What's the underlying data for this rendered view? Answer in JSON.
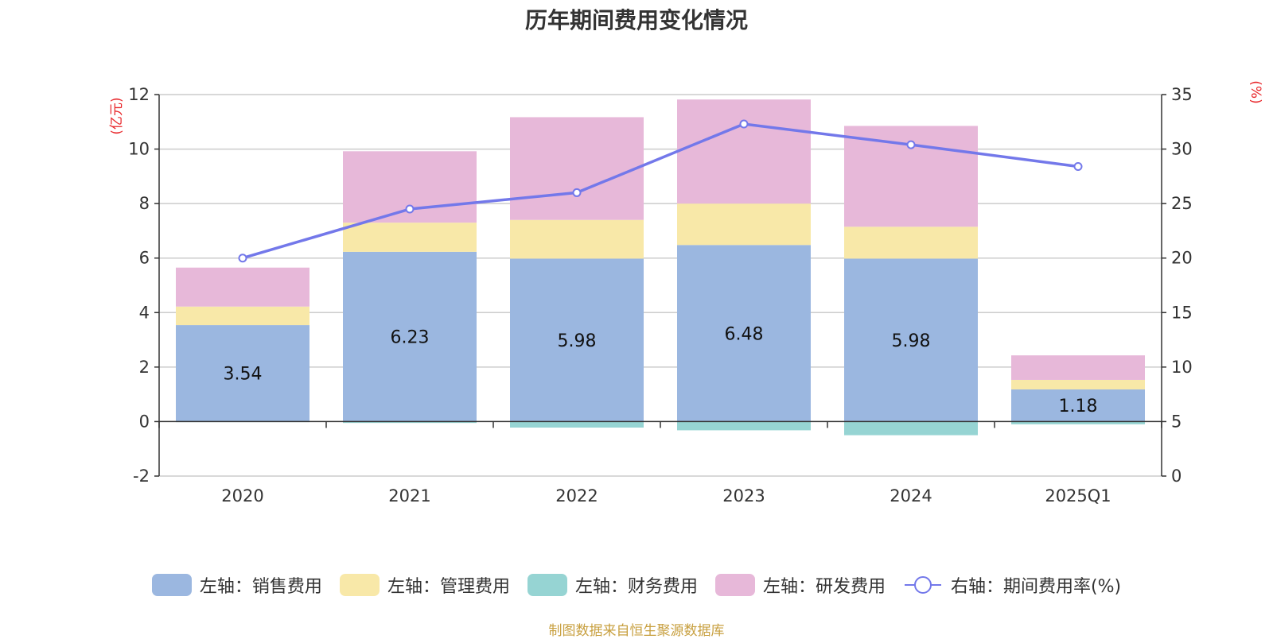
{
  "chart_data": {
    "type": "bar",
    "title": "历年期间费用变化情况",
    "categories": [
      "2020",
      "2021",
      "2022",
      "2023",
      "2024",
      "2025Q1"
    ],
    "left_axis": {
      "unit": "(亿元)",
      "ylim": [
        -2,
        12
      ],
      "ticks": [
        -2,
        0,
        2,
        4,
        6,
        8,
        10,
        12
      ]
    },
    "right_axis": {
      "unit": "(%)",
      "ylim": [
        0,
        35
      ],
      "ticks": [
        0,
        5,
        10,
        15,
        20,
        25,
        30,
        35
      ]
    },
    "series": [
      {
        "name": "左轴：销售费用",
        "axis": "left",
        "stacked": true,
        "color": "#9bb7e0",
        "values": [
          3.54,
          6.23,
          5.98,
          6.48,
          5.98,
          1.18
        ],
        "show_labels": true
      },
      {
        "name": "左轴：管理费用",
        "axis": "left",
        "stacked": true,
        "color": "#f8e8a8",
        "values": [
          0.68,
          1.07,
          1.42,
          1.52,
          1.17,
          0.35
        ]
      },
      {
        "name": "左轴：财务费用",
        "axis": "left",
        "stacked": true,
        "color": "#96d4d3",
        "values": [
          -0.02,
          -0.05,
          -0.22,
          -0.32,
          -0.5,
          -0.1
        ]
      },
      {
        "name": "左轴：研发费用",
        "axis": "left",
        "stacked": true,
        "color": "#e7b8d9",
        "values": [
          1.43,
          2.62,
          3.77,
          3.82,
          3.7,
          0.9
        ]
      },
      {
        "name": "右轴：期间费用率(%)",
        "axis": "right",
        "type": "line",
        "color": "#7378ea",
        "values": [
          20.0,
          24.5,
          26.0,
          32.3,
          30.4,
          28.4
        ]
      }
    ],
    "grid": true,
    "legend_position": "bottom"
  },
  "footer": {
    "source": "制图数据来自恒生聚源数据库"
  },
  "colors": {
    "left_unit": "#e8262a",
    "right_unit": "#e8262a",
    "footer": "#c8a040",
    "axis": "#333333",
    "grid": "#cccccc"
  }
}
